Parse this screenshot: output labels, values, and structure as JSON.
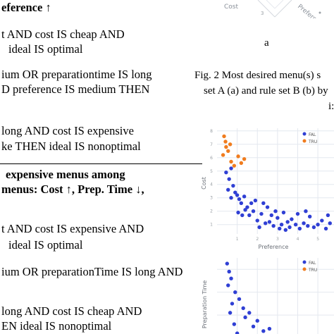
{
  "left_column": {
    "lines": [
      "eference ↑",
      "t AND cost IS cheap AND",
      "ideal IS optimal",
      "ium OR preparationtime IS long",
      "D preference IS medium THEN",
      "long AND cost IS expensive",
      "ke THEN ideal IS nonoptimal",
      "expensive menus among",
      "menus:  Cost ↑, Prep. Time ↓,",
      "t AND cost IS expensive AND",
      "ideal IS optimal",
      "ium OR preparationTime IS long AND",
      "long AND cost IS cheap AND",
      "EN ideal IS nonoptimal"
    ]
  },
  "right_column": {
    "top_plot": {
      "axis_labels": [
        "Cost",
        "Preference"
      ]
    },
    "subfigure_label": "a",
    "caption_lines": [
      "Fig. 2 Most desired menu(s) s",
      "set A (a) and rule set B (b) by",
      "i:"
    ],
    "scatter_1": {
      "ylabel": "Cost",
      "xlabel": "Preference",
      "legend": [
        "FAL",
        "TRU"
      ]
    },
    "scatter_2": {
      "ylabel": "Preparation Time",
      "legend": [
        "FAL",
        "TRU"
      ]
    }
  },
  "colors": {
    "false_series": "#2f3fd4",
    "true_series": "#f07c1e",
    "grid": "#e4e8ef",
    "axis_text": "#9aa0a6"
  },
  "chart_data": [
    {
      "type": "scatter",
      "ylabel": "Cost",
      "xlabel": "Preference",
      "yticks": [
        1,
        2,
        3,
        4,
        5,
        6,
        7,
        8
      ],
      "xticks": [
        1,
        2,
        3,
        4,
        5
      ],
      "xlim": [
        0,
        5.8
      ],
      "ylim": [
        0.3,
        8.2
      ],
      "series": [
        {
          "name": "FAL",
          "color": "#2f3fd4",
          "points": [
            [
              0.45,
              4.9
            ],
            [
              0.6,
              4.4
            ],
            [
              0.7,
              5.2
            ],
            [
              0.8,
              3.9
            ],
            [
              0.9,
              3.4
            ],
            [
              1.0,
              3.2
            ],
            [
              0.7,
              3.0
            ],
            [
              1.1,
              2.9
            ],
            [
              1.2,
              2.6
            ],
            [
              1.35,
              3.1
            ],
            [
              1.5,
              2.3
            ],
            [
              1.25,
              1.7
            ],
            [
              1.6,
              1.7
            ],
            [
              1.7,
              2.6
            ],
            [
              1.8,
              2.0
            ],
            [
              2.0,
              1.3
            ],
            [
              2.2,
              1.8
            ],
            [
              2.1,
              0.8
            ],
            [
              2.4,
              1.1
            ],
            [
              2.5,
              2.3
            ],
            [
              2.6,
              1.2
            ],
            [
              2.8,
              0.9
            ],
            [
              2.9,
              2.0
            ],
            [
              3.0,
              1.5
            ],
            [
              3.1,
              0.7
            ],
            [
              3.2,
              1.0
            ],
            [
              3.3,
              1.9
            ],
            [
              3.5,
              1.2
            ],
            [
              3.6,
              0.8
            ],
            [
              3.7,
              1.4
            ],
            [
              3.9,
              1.0
            ],
            [
              4.0,
              1.8
            ],
            [
              4.1,
              0.7
            ],
            [
              4.3,
              1.1
            ],
            [
              4.5,
              0.9
            ],
            [
              4.6,
              1.6
            ],
            [
              4.8,
              0.8
            ],
            [
              5.0,
              1.0
            ],
            [
              5.2,
              1.3
            ],
            [
              5.4,
              0.7
            ],
            [
              5.5,
              1.7
            ],
            [
              5.6,
              1.1
            ],
            [
              1.9,
              2.8
            ],
            [
              2.7,
              1.7
            ],
            [
              1.4,
              2.1
            ],
            [
              3.4,
              0.6
            ],
            [
              4.4,
              2.0
            ],
            [
              0.55,
              3.6
            ],
            [
              1.05,
              1.9
            ],
            [
              2.3,
              2.6
            ]
          ]
        },
        {
          "name": "TRU",
          "color": "#f07c1e",
          "points": [
            [
              0.35,
              7.6
            ],
            [
              0.42,
              7.2
            ],
            [
              0.55,
              6.5
            ],
            [
              0.45,
              6.8
            ],
            [
              0.7,
              5.7
            ],
            [
              0.85,
              5.4
            ],
            [
              1.05,
              6.1
            ],
            [
              1.2,
              5.6
            ],
            [
              0.65,
              7.0
            ],
            [
              1.35,
              5.9
            ],
            [
              0.3,
              6.2
            ]
          ]
        }
      ]
    },
    {
      "type": "scatter",
      "ylabel": "Preparation Time",
      "ylim": [
        0,
        9
      ],
      "series": [
        {
          "name": "FAL",
          "color": "#2f3fd4",
          "points": [
            [
              0.5,
              8.5
            ],
            [
              0.6,
              7.8
            ],
            [
              0.7,
              7.2
            ],
            [
              0.55,
              6.6
            ],
            [
              0.9,
              6.0
            ],
            [
              1.1,
              5.4
            ],
            [
              0.75,
              5.0
            ],
            [
              1.3,
              4.6
            ],
            [
              1.6,
              4.2
            ],
            [
              1.4,
              3.8
            ],
            [
              2.0,
              3.5
            ],
            [
              1.8,
              3.0
            ],
            [
              2.3,
              2.6
            ],
            [
              2.6,
              2.8
            ],
            [
              3.0,
              2.2
            ],
            [
              2.8,
              1.8
            ],
            [
              3.4,
              1.5
            ],
            [
              2.2,
              1.2
            ],
            [
              1.6,
              1.0
            ],
            [
              3.8,
              1.0
            ],
            [
              0.85,
              3.2
            ],
            [
              1.0,
              2.4
            ],
            [
              4.2,
              0.6
            ],
            [
              3.2,
              0.8
            ],
            [
              2.5,
              0.4
            ],
            [
              1.2,
              0.5
            ],
            [
              0.65,
              4.2
            ],
            [
              1.9,
              2.1
            ]
          ]
        },
        {
          "name": "TRU",
          "color": "#f07c1e",
          "points": []
        }
      ]
    }
  ]
}
